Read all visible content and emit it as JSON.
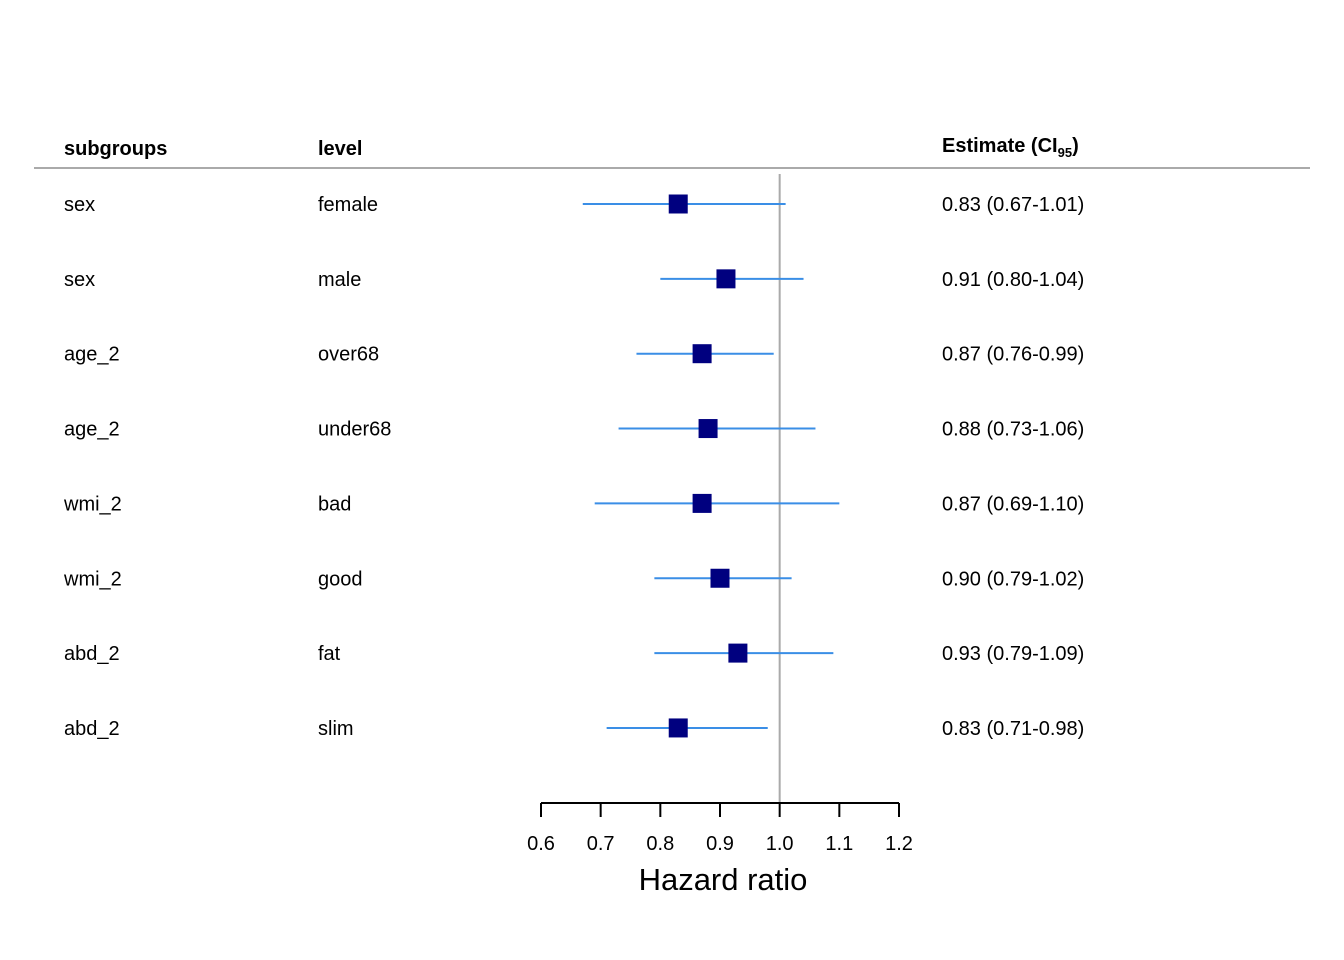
{
  "chart_data": {
    "type": "forest",
    "columns": {
      "subgroups": "subgroups",
      "level": "level",
      "estimate_prefix": "Estimate (",
      "estimate_ci": "CI",
      "estimate_sub": "95",
      "estimate_suffix": ")"
    },
    "rows": [
      {
        "subgroup": "sex",
        "level": "female",
        "estimate": 0.83,
        "lower": 0.67,
        "upper": 1.01,
        "label": "0.83 (0.67-1.01)"
      },
      {
        "subgroup": "sex",
        "level": "male",
        "estimate": 0.91,
        "lower": 0.8,
        "upper": 1.04,
        "label": "0.91 (0.80-1.04)"
      },
      {
        "subgroup": "age_2",
        "level": "over68",
        "estimate": 0.87,
        "lower": 0.76,
        "upper": 0.99,
        "label": "0.87 (0.76-0.99)"
      },
      {
        "subgroup": "age_2",
        "level": "under68",
        "estimate": 0.88,
        "lower": 0.73,
        "upper": 1.06,
        "label": "0.88 (0.73-1.06)"
      },
      {
        "subgroup": "wmi_2",
        "level": "bad",
        "estimate": 0.87,
        "lower": 0.69,
        "upper": 1.1,
        "label": "0.87 (0.69-1.10)"
      },
      {
        "subgroup": "wmi_2",
        "level": "good",
        "estimate": 0.9,
        "lower": 0.79,
        "upper": 1.02,
        "label": "0.90 (0.79-1.02)"
      },
      {
        "subgroup": "abd_2",
        "level": "fat",
        "estimate": 0.93,
        "lower": 0.79,
        "upper": 1.09,
        "label": "0.93 (0.79-1.09)"
      },
      {
        "subgroup": "abd_2",
        "level": "slim",
        "estimate": 0.83,
        "lower": 0.71,
        "upper": 0.98,
        "label": "0.83 (0.71-0.98)"
      }
    ],
    "xlabel": "Hazard ratio",
    "xlim": [
      0.6,
      1.2
    ],
    "xticks": [
      0.6,
      0.7,
      0.8,
      0.9,
      1.0,
      1.1,
      1.2
    ],
    "tick_labels": [
      "0.6",
      "0.7",
      "0.8",
      "0.9",
      "1.0",
      "1.1",
      "1.2"
    ],
    "reference_line": 1.0,
    "colors": {
      "ci_line": "#3a8ee6",
      "point": "#00007f",
      "reference": "#aaaaaa",
      "header_rule": "#aaaaaa",
      "axis": "#000000"
    }
  }
}
